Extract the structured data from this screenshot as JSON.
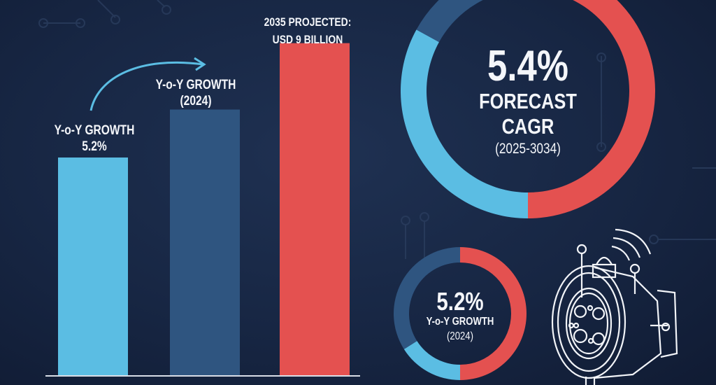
{
  "chart_data": [
    {
      "type": "bar",
      "categories": [
        "",
        "",
        ""
      ],
      "values": [
        5.9,
        7.2,
        9
      ],
      "ylabel": "",
      "xlabel": "",
      "ylim": [
        0,
        9.6
      ],
      "grid": false,
      "colors": [
        "#5bbde3",
        "#2f5580",
        "#e45150"
      ],
      "annotations": [
        {
          "line1": "Y-o-Y GROWTH",
          "line2": "5.2%"
        },
        {
          "line1": "Y-o-Y GROWTH",
          "line2": "(2024)"
        },
        {
          "line1": "2035 PROJECTED:",
          "line2": "USD 9 BILLION"
        }
      ]
    },
    {
      "type": "pie",
      "style": "donut",
      "slices": [
        {
          "value": 50,
          "color": "#e45150"
        },
        {
          "value": 33,
          "color": "#5bbde3"
        },
        {
          "value": 17,
          "color": "#2f5580"
        }
      ],
      "center_value": "5.4%",
      "center_label1": "FORECAST",
      "center_label2": "CAGR",
      "center_label3": "(2025-3034)"
    },
    {
      "type": "pie",
      "style": "donut",
      "slices": [
        {
          "value": 50,
          "color": "#e45150"
        },
        {
          "value": 16,
          "color": "#5bbde3"
        },
        {
          "value": 34,
          "color": "#2f5580"
        }
      ],
      "center_value": "5.2%",
      "center_label1": "Y-o-Y GROWTH",
      "center_label2": "(2024)"
    }
  ],
  "icons": {
    "device": "iot-sensor-device-icon",
    "arrow": "curved-arrow-icon"
  }
}
